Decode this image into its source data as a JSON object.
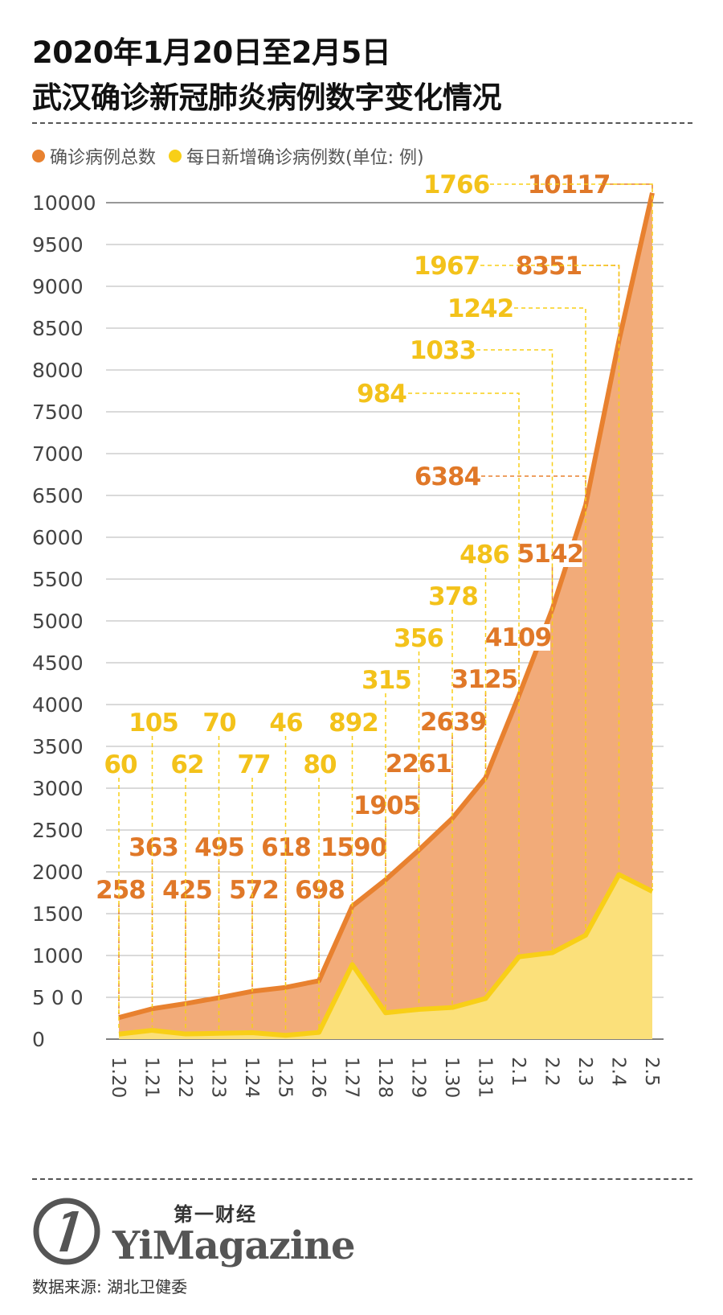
{
  "title": {
    "line1": "2020年1月20日至2月5日",
    "line2": "武汉确诊新冠肺炎病例数字变化情况"
  },
  "legend": {
    "total_label": "确诊病例总数",
    "daily_label": "每日新增确诊病例数(单位: 例)"
  },
  "colors": {
    "total_line": "#e8812f",
    "total_fill": "#f2ab79",
    "daily_line": "#f8cf17",
    "daily_fill": "#fbe07a",
    "total_label": "#e07828",
    "daily_label": "#f3c21a",
    "grid": "#b5b5b5",
    "axis_text": "#444444"
  },
  "chart_data": {
    "type": "area",
    "categories": [
      "1.20",
      "1.21",
      "1.22",
      "1.23",
      "1.24",
      "1.25",
      "1.26",
      "1.27",
      "1.28",
      "1.29",
      "1.30",
      "1.31",
      "2.1",
      "2.2",
      "2.3",
      "2.4",
      "2.5"
    ],
    "series": [
      {
        "name": "确诊病例总数",
        "values": [
          258,
          363,
          425,
          495,
          572,
          618,
          698,
          1590,
          1905,
          2261,
          2639,
          3125,
          4109,
          5142,
          6384,
          8351,
          10117
        ]
      },
      {
        "name": "每日新增确诊病例数",
        "values": [
          60,
          105,
          62,
          70,
          77,
          46,
          80,
          892,
          315,
          356,
          378,
          486,
          984,
          1033,
          1242,
          1967,
          1766
        ]
      }
    ],
    "yticks": [
      "0",
      "5 0 0",
      "1000",
      "1500",
      "2000",
      "2500",
      "3000",
      "3500",
      "4000",
      "4500",
      "5000",
      "5500",
      "6000",
      "6500",
      "7000",
      "7500",
      "8000",
      "8500",
      "9000",
      "9500",
      "10000"
    ],
    "ylim": [
      0,
      10000
    ],
    "grid": true
  },
  "source": "数据来源: 湖北卫健委",
  "logo": {
    "brand_cn": "第一财经",
    "brand_en": "YiMagazine"
  }
}
